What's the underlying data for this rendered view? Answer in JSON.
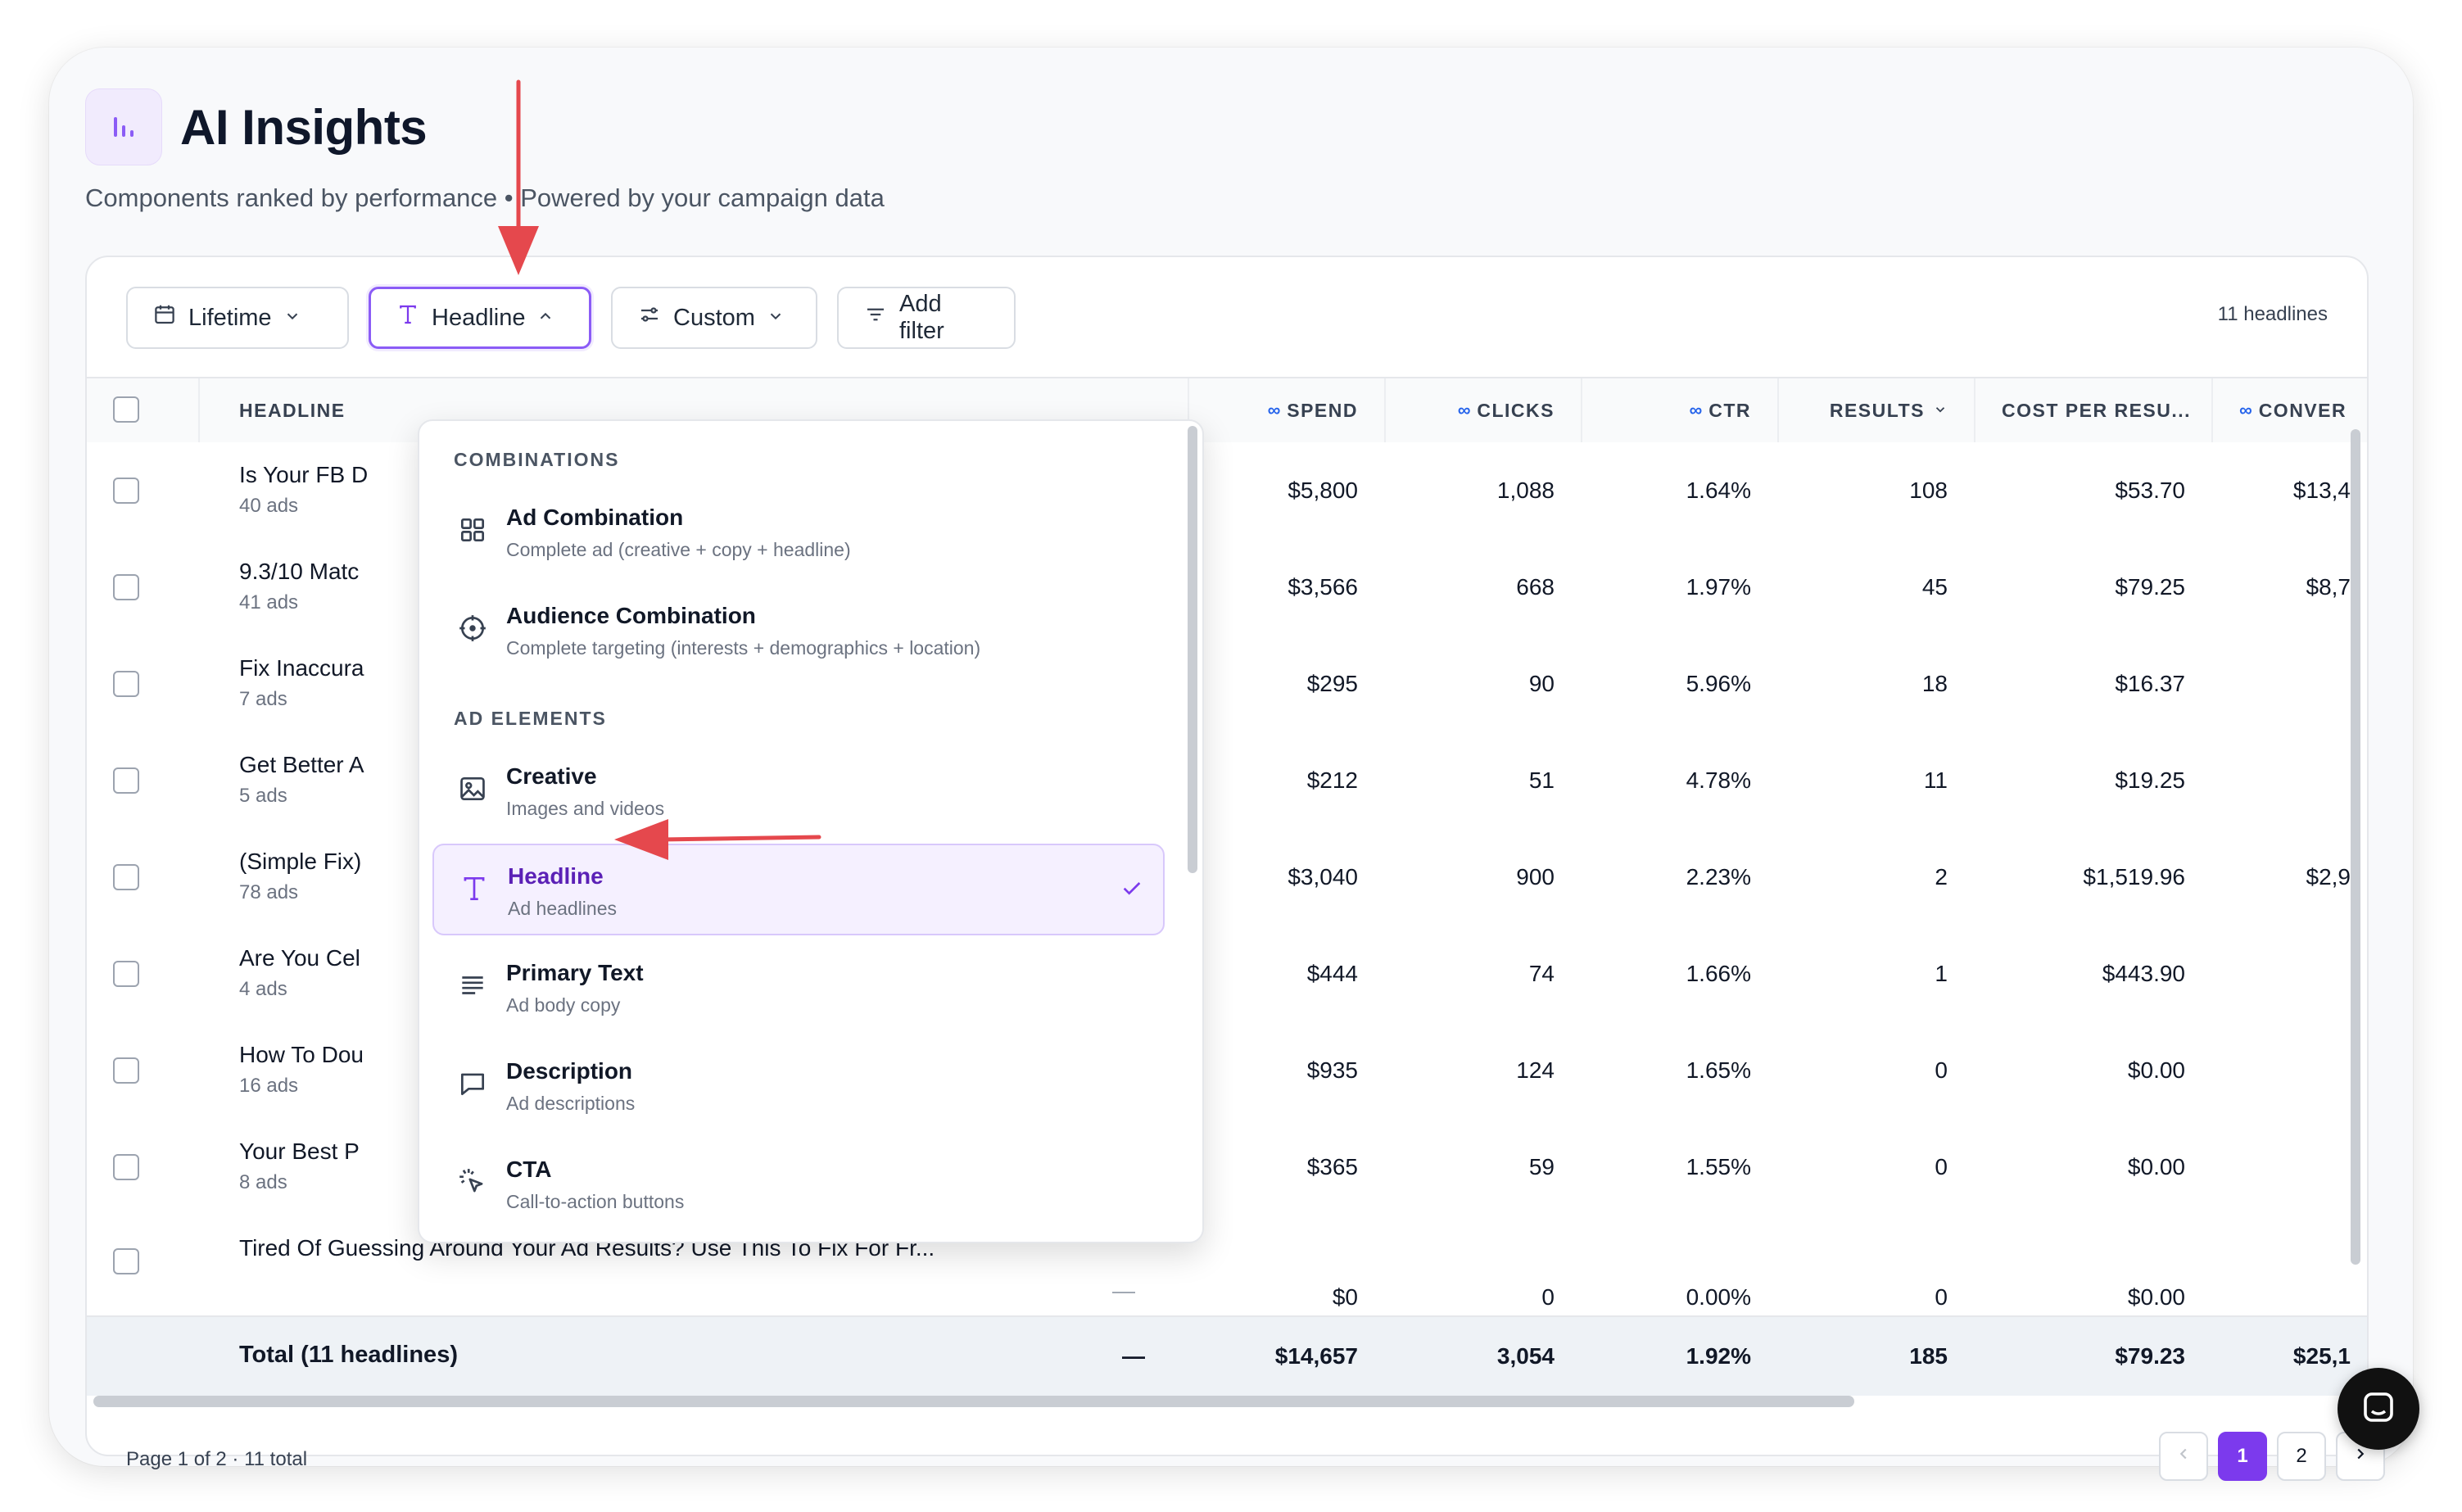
{
  "page": {
    "title": "AI Insights",
    "subtitle": "Components ranked by performance • Powered by your campaign data",
    "count_label": "11 headlines"
  },
  "toolbar": {
    "date_range": "Lifetime",
    "group_by": "Headline",
    "columns": "Custom",
    "add_filter": "Add filter"
  },
  "table": {
    "headers": {
      "headline": "HEADLINE",
      "spend": "SPEND",
      "clicks": "CLICKS",
      "ctr": "CTR",
      "results": "RESULTS",
      "cost_per_result": "COST PER RESU...",
      "conversions": "CONVER"
    },
    "rows": [
      {
        "name": "Is Your FB D",
        "sub": "40 ads",
        "spend": "$5,800",
        "clicks": "1,088",
        "ctr": "1.64%",
        "results": "108",
        "cpr": "$53.70",
        "conv": "$13,4"
      },
      {
        "name": "9.3/10 Matc",
        "sub": "41 ads",
        "spend": "$3,566",
        "clicks": "668",
        "ctr": "1.97%",
        "results": "45",
        "cpr": "$79.25",
        "conv": "$8,7"
      },
      {
        "name": "Fix Inaccura",
        "sub": "7 ads",
        "spend": "$295",
        "clicks": "90",
        "ctr": "5.96%",
        "results": "18",
        "cpr": "$16.37",
        "conv": ""
      },
      {
        "name": "Get Better A",
        "sub": "5 ads",
        "spend": "$212",
        "clicks": "51",
        "ctr": "4.78%",
        "results": "11",
        "cpr": "$19.25",
        "conv": ""
      },
      {
        "name": "(Simple Fix)",
        "sub": "78 ads",
        "spend": "$3,040",
        "clicks": "900",
        "ctr": "2.23%",
        "results": "2",
        "cpr": "$1,519.96",
        "conv": "$2,9"
      },
      {
        "name": "Are You Cel",
        "sub": "4 ads",
        "spend": "$444",
        "clicks": "74",
        "ctr": "1.66%",
        "results": "1",
        "cpr": "$443.90",
        "conv": ""
      },
      {
        "name": "How To Dou",
        "sub": "16 ads",
        "spend": "$935",
        "clicks": "124",
        "ctr": "1.65%",
        "results": "0",
        "cpr": "$0.00",
        "conv": ""
      },
      {
        "name": "Your Best P",
        "sub": "8 ads",
        "spend": "$365",
        "clicks": "59",
        "ctr": "1.55%",
        "results": "0",
        "cpr": "$0.00",
        "conv": ""
      },
      {
        "name": "Tired Of Guessing Around Your Ad Results? Use This To Fix For Fr...",
        "sub": "",
        "dash": "—",
        "spend": "$0",
        "clicks": "0",
        "ctr": "0.00%",
        "results": "0",
        "cpr": "$0.00",
        "conv": ""
      }
    ],
    "total": {
      "label": "Total (11 headlines)",
      "dash": "—",
      "spend": "$14,657",
      "clicks": "3,054",
      "ctr": "1.92%",
      "results": "185",
      "cpr": "$79.23",
      "conv": "$25,1"
    }
  },
  "footer": {
    "page_info": "Page 1 of 2 · 11 total",
    "pages": [
      "1",
      "2"
    ]
  },
  "dropdown": {
    "sections": [
      {
        "title": "COMBINATIONS",
        "items": [
          {
            "label": "Ad Combination",
            "desc": "Complete ad (creative + copy + headline)",
            "icon": "grid-icon"
          },
          {
            "label": "Audience Combination",
            "desc": "Complete targeting (interests + demographics + location)",
            "icon": "target-icon"
          }
        ]
      },
      {
        "title": "AD ELEMENTS",
        "items": [
          {
            "label": "Creative",
            "desc": "Images and videos",
            "icon": "image-icon"
          },
          {
            "label": "Headline",
            "desc": "Ad headlines",
            "icon": "text-icon",
            "selected": true
          },
          {
            "label": "Primary Text",
            "desc": "Ad body copy",
            "icon": "paragraph-icon"
          },
          {
            "label": "Description",
            "desc": "Ad descriptions",
            "icon": "chat-bubble-icon"
          },
          {
            "label": "CTA",
            "desc": "Call-to-action buttons",
            "icon": "cursor-click-icon"
          }
        ]
      }
    ]
  },
  "colors": {
    "accent": "#7c3aed",
    "selected_bg": "#f5f0ff",
    "annotation_arrow": "#e5484d",
    "meta_blue": "#2563eb"
  }
}
